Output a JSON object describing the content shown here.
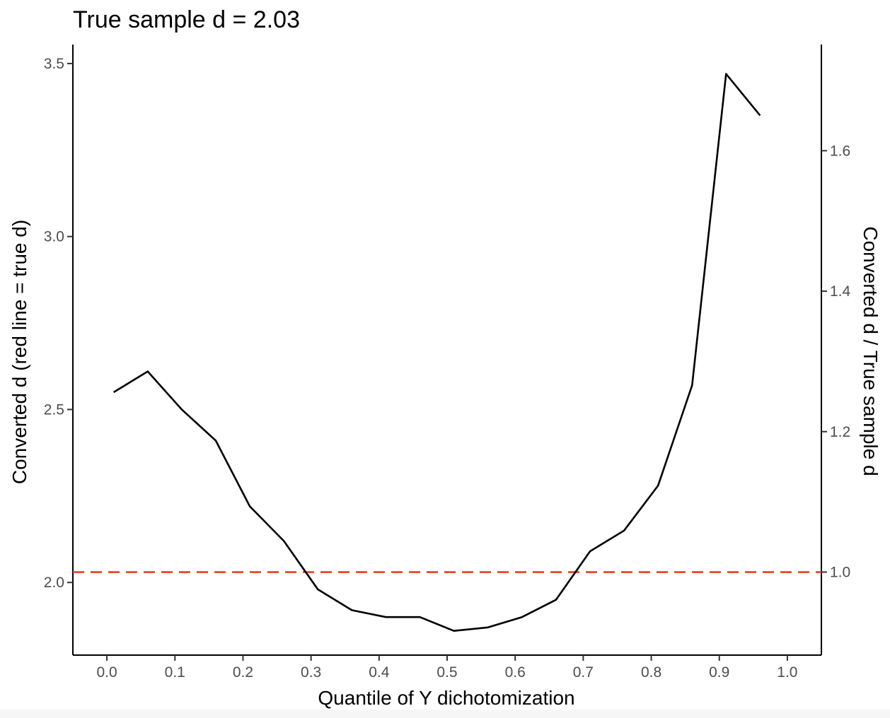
{
  "chart_data": {
    "type": "line",
    "title": "True sample d =  2.03",
    "xlabel": "Quantile of Y dichotomization",
    "ylabel": "Converted d (red line = true d)",
    "ylabel_right": "Converted d / True sample d",
    "xlim": [
      -0.05,
      1.05
    ],
    "ylim": [
      1.79,
      3.555
    ],
    "x_ticks": [
      0.0,
      0.1,
      0.2,
      0.3,
      0.4,
      0.5,
      0.6,
      0.7,
      0.8,
      0.9,
      1.0
    ],
    "x_tick_labels": [
      "0.0",
      "0.1",
      "0.2",
      "0.3",
      "0.4",
      "0.5",
      "0.6",
      "0.7",
      "0.8",
      "0.9",
      "1.0"
    ],
    "y_ticks": [
      2.0,
      2.5,
      3.0,
      3.5
    ],
    "y_tick_labels": [
      "2.0",
      "2.5",
      "3.0",
      "3.5"
    ],
    "y2_ticks": [
      1.0,
      1.2,
      1.4,
      1.6
    ],
    "y2_tick_labels": [
      "1.0",
      "1.2",
      "1.4",
      "1.6"
    ],
    "y2_scale_divisor": 2.03,
    "grid": false,
    "reference_line": {
      "y": 2.03,
      "color": "#f03c1e",
      "style": "dashed"
    },
    "series": [
      {
        "color": "#000000",
        "x": [
          0.01,
          0.06,
          0.11,
          0.16,
          0.21,
          0.26,
          0.31,
          0.36,
          0.41,
          0.46,
          0.51,
          0.56,
          0.61,
          0.66,
          0.71,
          0.76,
          0.81,
          0.86,
          0.91,
          0.96
        ],
        "y": [
          2.55,
          2.61,
          2.5,
          2.41,
          2.22,
          2.12,
          1.98,
          1.92,
          1.9,
          1.9,
          1.86,
          1.87,
          1.9,
          1.95,
          2.09,
          2.15,
          2.28,
          2.57,
          3.47,
          3.35
        ]
      }
    ]
  }
}
